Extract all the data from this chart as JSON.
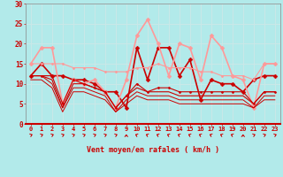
{
  "background_color": "#b2eaea",
  "grid_color": "#c8e8e8",
  "x_labels": [
    "0",
    "1",
    "2",
    "3",
    "4",
    "5",
    "6",
    "7",
    "8",
    "9",
    "10",
    "11",
    "12",
    "13",
    "14",
    "15",
    "16",
    "17",
    "18",
    "19",
    "20",
    "21",
    "22",
    "23"
  ],
  "ylim": [
    0,
    30
  ],
  "yticks": [
    0,
    5,
    10,
    15,
    20,
    25,
    30
  ],
  "xlabel": "Vent moyen/en rafales ( km/h )",
  "series": [
    {
      "y": [
        12,
        15,
        12,
        12,
        11,
        11,
        10,
        8,
        8,
        4,
        19,
        11,
        19,
        19,
        12,
        16,
        6,
        11,
        10,
        10,
        8,
        11,
        12,
        12
      ],
      "color": "#cc0000",
      "linewidth": 1.2,
      "marker": "D",
      "markersize": 2.5
    },
    {
      "y": [
        15,
        19,
        19,
        5,
        11,
        10,
        11,
        8,
        4,
        11,
        22,
        26,
        20,
        12,
        20,
        19,
        11,
        22,
        19,
        12,
        11,
        4,
        15,
        15
      ],
      "color": "#ff9999",
      "linewidth": 1.2,
      "marker": "D",
      "markersize": 2.5
    },
    {
      "y": [
        15,
        15,
        15,
        15,
        14,
        14,
        14,
        13,
        13,
        13,
        14,
        14,
        15,
        14,
        14,
        14,
        13,
        13,
        12,
        12,
        12,
        11,
        15,
        15
      ],
      "color": "#ff9999",
      "linewidth": 0.8,
      "marker": "D",
      "markersize": 1.5
    },
    {
      "y": [
        12,
        12,
        12,
        5,
        11,
        10,
        9,
        8,
        4,
        7,
        10,
        8,
        9,
        9,
        8,
        8,
        8,
        8,
        8,
        8,
        8,
        5,
        8,
        8
      ],
      "color": "#cc0000",
      "linewidth": 0.8,
      "marker": "D",
      "markersize": 1.5
    },
    {
      "y": [
        12,
        12,
        11,
        4,
        10,
        10,
        9,
        8,
        4,
        7,
        9,
        8,
        8,
        8,
        7,
        7,
        7,
        7,
        7,
        7,
        7,
        5,
        8,
        8
      ],
      "color": "#cc0000",
      "linewidth": 0.8,
      "marker": null,
      "markersize": 0
    },
    {
      "y": [
        12,
        12,
        10,
        4,
        9,
        9,
        8,
        7,
        3,
        6,
        8,
        7,
        7,
        7,
        6,
        6,
        6,
        6,
        6,
        6,
        6,
        4,
        7,
        7
      ],
      "color": "#cc0000",
      "linewidth": 0.7,
      "marker": null,
      "markersize": 0
    },
    {
      "y": [
        11,
        11,
        9,
        3,
        8,
        8,
        7,
        6,
        3,
        5,
        7,
        6,
        6,
        6,
        5,
        5,
        5,
        5,
        5,
        5,
        5,
        4,
        6,
        6
      ],
      "color": "#cc0000",
      "linewidth": 0.7,
      "marker": null,
      "markersize": 0
    }
  ],
  "wind_arrows": {
    "x_positions": [
      0,
      1,
      2,
      3,
      4,
      5,
      6,
      7,
      8,
      9,
      10,
      11,
      12,
      13,
      14,
      15,
      16,
      17,
      18,
      19,
      20,
      21,
      22,
      23
    ],
    "angles_deg": [
      225,
      225,
      225,
      225,
      225,
      225,
      225,
      225,
      225,
      270,
      315,
      315,
      315,
      315,
      315,
      315,
      315,
      315,
      315,
      315,
      270,
      225,
      225,
      225
    ]
  }
}
